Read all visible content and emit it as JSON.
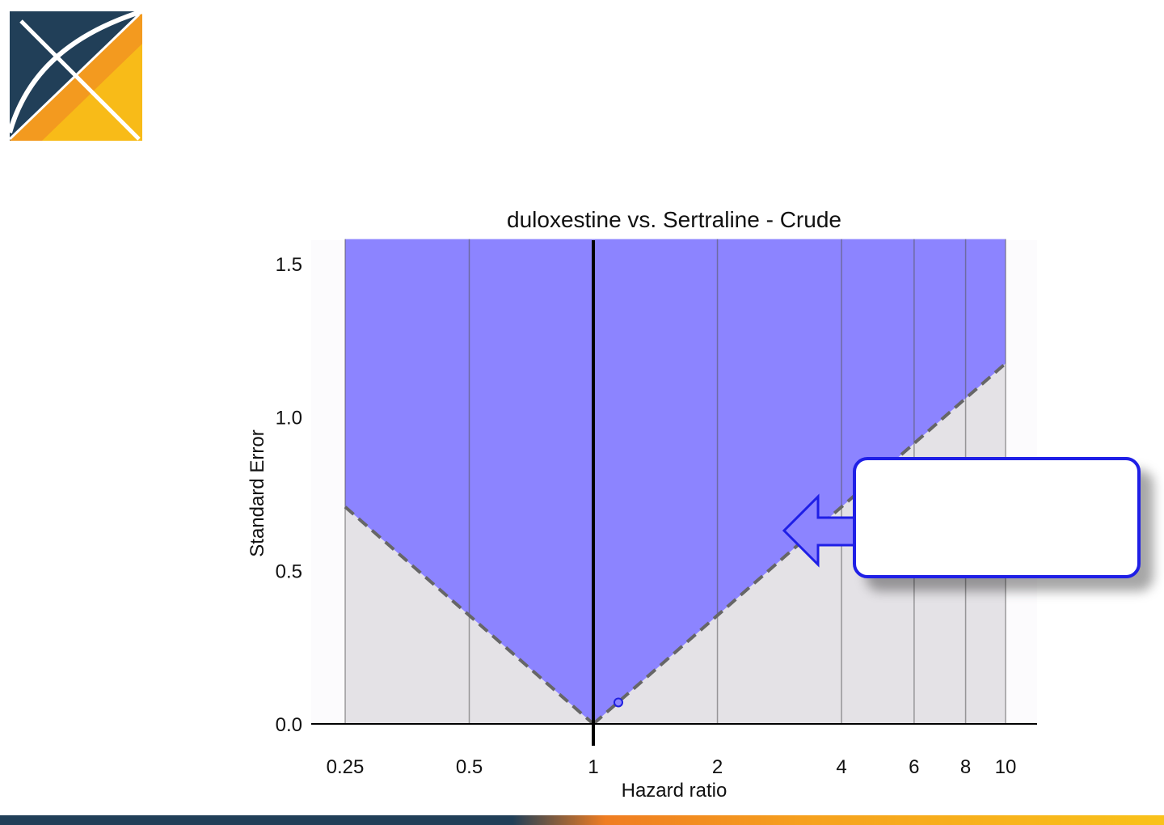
{
  "brand": {
    "navy": "#213f58",
    "orange": "#ef7d22",
    "yellow": "#f9c21a"
  },
  "chart_data": {
    "type": "scatter",
    "title": "duloxestine vs. Sertraline - Crude",
    "xlabel": "Hazard ratio",
    "ylabel": "Standard Error",
    "x_scale": "log",
    "x_ticks": [
      0.25,
      0.5,
      1,
      2,
      4,
      6,
      8,
      10
    ],
    "x_tick_labels": [
      "0.25",
      "0.5",
      "1",
      "2",
      "4",
      "6",
      "8",
      "10"
    ],
    "y_ticks": [
      0.0,
      0.5,
      1.0,
      1.5
    ],
    "y_tick_labels": [
      "0.0",
      "0.5",
      "1.0",
      "1.5"
    ],
    "xlim": [
      0.25,
      10
    ],
    "ylim": [
      0,
      1.58
    ],
    "grid": true,
    "null_effect_line": 1,
    "significance_boundary": "dashed",
    "points": [
      {
        "x": 1.15,
        "y": 0.07
      }
    ],
    "colors": {
      "non_significant_region": "#8c84ff",
      "significant_region": "#e4e2e6",
      "point": "#2020e0",
      "plot_background": "#fcfbfd"
    }
  },
  "callout": {
    "text": "",
    "border_color": "#1f1fe6",
    "arrow_color": "#8c84ff"
  }
}
